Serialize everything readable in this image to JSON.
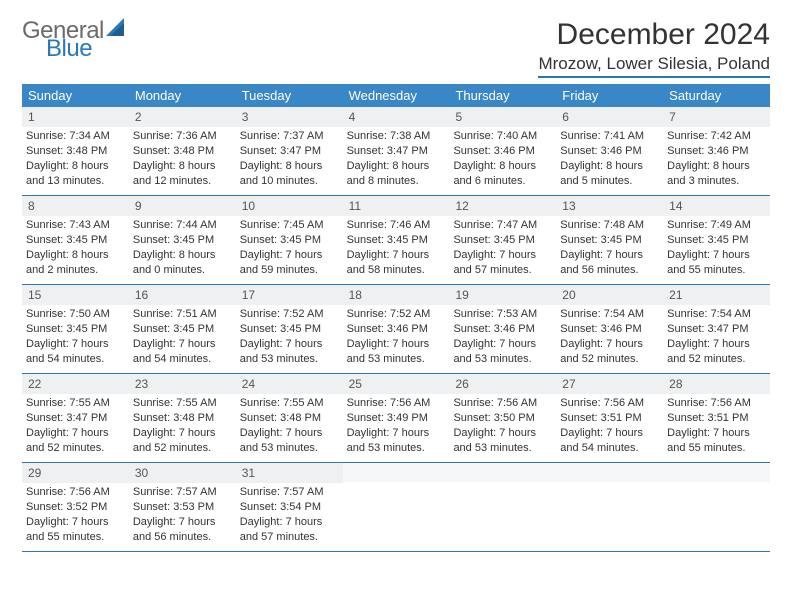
{
  "logo": {
    "text_general": "General",
    "text_blue": "Blue",
    "gray": "#6b6b6b",
    "brand_blue": "#2b78b8"
  },
  "title": "December 2024",
  "location": "Mrozow, Lower Silesia, Poland",
  "header_bg": "#3a87c7",
  "daynum_bg": "#eef0f2",
  "rule_color": "#2b78b8",
  "day_headers": [
    "Sunday",
    "Monday",
    "Tuesday",
    "Wednesday",
    "Thursday",
    "Friday",
    "Saturday"
  ],
  "weeks": [
    [
      {
        "n": "1",
        "sr": "Sunrise: 7:34 AM",
        "ss": "Sunset: 3:48 PM",
        "dl1": "Daylight: 8 hours",
        "dl2": "and 13 minutes."
      },
      {
        "n": "2",
        "sr": "Sunrise: 7:36 AM",
        "ss": "Sunset: 3:48 PM",
        "dl1": "Daylight: 8 hours",
        "dl2": "and 12 minutes."
      },
      {
        "n": "3",
        "sr": "Sunrise: 7:37 AM",
        "ss": "Sunset: 3:47 PM",
        "dl1": "Daylight: 8 hours",
        "dl2": "and 10 minutes."
      },
      {
        "n": "4",
        "sr": "Sunrise: 7:38 AM",
        "ss": "Sunset: 3:47 PM",
        "dl1": "Daylight: 8 hours",
        "dl2": "and 8 minutes."
      },
      {
        "n": "5",
        "sr": "Sunrise: 7:40 AM",
        "ss": "Sunset: 3:46 PM",
        "dl1": "Daylight: 8 hours",
        "dl2": "and 6 minutes."
      },
      {
        "n": "6",
        "sr": "Sunrise: 7:41 AM",
        "ss": "Sunset: 3:46 PM",
        "dl1": "Daylight: 8 hours",
        "dl2": "and 5 minutes."
      },
      {
        "n": "7",
        "sr": "Sunrise: 7:42 AM",
        "ss": "Sunset: 3:46 PM",
        "dl1": "Daylight: 8 hours",
        "dl2": "and 3 minutes."
      }
    ],
    [
      {
        "n": "8",
        "sr": "Sunrise: 7:43 AM",
        "ss": "Sunset: 3:45 PM",
        "dl1": "Daylight: 8 hours",
        "dl2": "and 2 minutes."
      },
      {
        "n": "9",
        "sr": "Sunrise: 7:44 AM",
        "ss": "Sunset: 3:45 PM",
        "dl1": "Daylight: 8 hours",
        "dl2": "and 0 minutes."
      },
      {
        "n": "10",
        "sr": "Sunrise: 7:45 AM",
        "ss": "Sunset: 3:45 PM",
        "dl1": "Daylight: 7 hours",
        "dl2": "and 59 minutes."
      },
      {
        "n": "11",
        "sr": "Sunrise: 7:46 AM",
        "ss": "Sunset: 3:45 PM",
        "dl1": "Daylight: 7 hours",
        "dl2": "and 58 minutes."
      },
      {
        "n": "12",
        "sr": "Sunrise: 7:47 AM",
        "ss": "Sunset: 3:45 PM",
        "dl1": "Daylight: 7 hours",
        "dl2": "and 57 minutes."
      },
      {
        "n": "13",
        "sr": "Sunrise: 7:48 AM",
        "ss": "Sunset: 3:45 PM",
        "dl1": "Daylight: 7 hours",
        "dl2": "and 56 minutes."
      },
      {
        "n": "14",
        "sr": "Sunrise: 7:49 AM",
        "ss": "Sunset: 3:45 PM",
        "dl1": "Daylight: 7 hours",
        "dl2": "and 55 minutes."
      }
    ],
    [
      {
        "n": "15",
        "sr": "Sunrise: 7:50 AM",
        "ss": "Sunset: 3:45 PM",
        "dl1": "Daylight: 7 hours",
        "dl2": "and 54 minutes."
      },
      {
        "n": "16",
        "sr": "Sunrise: 7:51 AM",
        "ss": "Sunset: 3:45 PM",
        "dl1": "Daylight: 7 hours",
        "dl2": "and 54 minutes."
      },
      {
        "n": "17",
        "sr": "Sunrise: 7:52 AM",
        "ss": "Sunset: 3:45 PM",
        "dl1": "Daylight: 7 hours",
        "dl2": "and 53 minutes."
      },
      {
        "n": "18",
        "sr": "Sunrise: 7:52 AM",
        "ss": "Sunset: 3:46 PM",
        "dl1": "Daylight: 7 hours",
        "dl2": "and 53 minutes."
      },
      {
        "n": "19",
        "sr": "Sunrise: 7:53 AM",
        "ss": "Sunset: 3:46 PM",
        "dl1": "Daylight: 7 hours",
        "dl2": "and 53 minutes."
      },
      {
        "n": "20",
        "sr": "Sunrise: 7:54 AM",
        "ss": "Sunset: 3:46 PM",
        "dl1": "Daylight: 7 hours",
        "dl2": "and 52 minutes."
      },
      {
        "n": "21",
        "sr": "Sunrise: 7:54 AM",
        "ss": "Sunset: 3:47 PM",
        "dl1": "Daylight: 7 hours",
        "dl2": "and 52 minutes."
      }
    ],
    [
      {
        "n": "22",
        "sr": "Sunrise: 7:55 AM",
        "ss": "Sunset: 3:47 PM",
        "dl1": "Daylight: 7 hours",
        "dl2": "and 52 minutes."
      },
      {
        "n": "23",
        "sr": "Sunrise: 7:55 AM",
        "ss": "Sunset: 3:48 PM",
        "dl1": "Daylight: 7 hours",
        "dl2": "and 52 minutes."
      },
      {
        "n": "24",
        "sr": "Sunrise: 7:55 AM",
        "ss": "Sunset: 3:48 PM",
        "dl1": "Daylight: 7 hours",
        "dl2": "and 53 minutes."
      },
      {
        "n": "25",
        "sr": "Sunrise: 7:56 AM",
        "ss": "Sunset: 3:49 PM",
        "dl1": "Daylight: 7 hours",
        "dl2": "and 53 minutes."
      },
      {
        "n": "26",
        "sr": "Sunrise: 7:56 AM",
        "ss": "Sunset: 3:50 PM",
        "dl1": "Daylight: 7 hours",
        "dl2": "and 53 minutes."
      },
      {
        "n": "27",
        "sr": "Sunrise: 7:56 AM",
        "ss": "Sunset: 3:51 PM",
        "dl1": "Daylight: 7 hours",
        "dl2": "and 54 minutes."
      },
      {
        "n": "28",
        "sr": "Sunrise: 7:56 AM",
        "ss": "Sunset: 3:51 PM",
        "dl1": "Daylight: 7 hours",
        "dl2": "and 55 minutes."
      }
    ],
    [
      {
        "n": "29",
        "sr": "Sunrise: 7:56 AM",
        "ss": "Sunset: 3:52 PM",
        "dl1": "Daylight: 7 hours",
        "dl2": "and 55 minutes."
      },
      {
        "n": "30",
        "sr": "Sunrise: 7:57 AM",
        "ss": "Sunset: 3:53 PM",
        "dl1": "Daylight: 7 hours",
        "dl2": "and 56 minutes."
      },
      {
        "n": "31",
        "sr": "Sunrise: 7:57 AM",
        "ss": "Sunset: 3:54 PM",
        "dl1": "Daylight: 7 hours",
        "dl2": "and 57 minutes."
      },
      {
        "empty": true
      },
      {
        "empty": true
      },
      {
        "empty": true
      },
      {
        "empty": true
      }
    ]
  ]
}
